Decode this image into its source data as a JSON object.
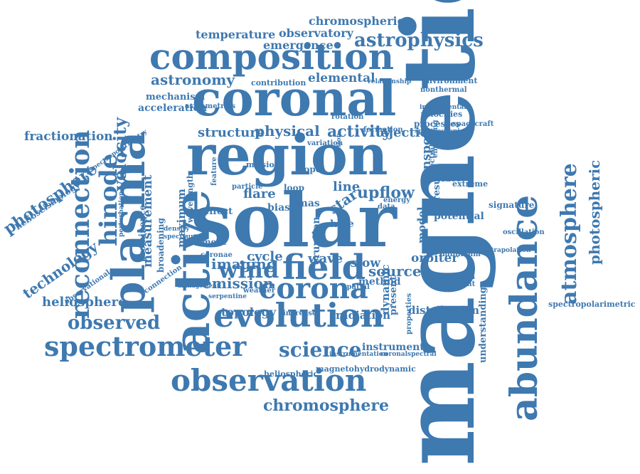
{
  "word_color": "#3e79b0",
  "words": [
    {
      "text": "magnetic",
      "orientation": "vertical-up"
    },
    {
      "text": "solar",
      "orientation": "horizontal"
    },
    {
      "text": "region",
      "orientation": "horizontal"
    },
    {
      "text": "coronal",
      "orientation": "horizontal"
    },
    {
      "text": "active",
      "orientation": "vertical-up"
    },
    {
      "text": "plasma",
      "orientation": "vertical-up"
    },
    {
      "text": "abundance",
      "orientation": "vertical-up"
    },
    {
      "text": "composition",
      "orientation": "horizontal"
    },
    {
      "text": "field",
      "orientation": "horizontal"
    },
    {
      "text": "evolution",
      "orientation": "horizontal"
    },
    {
      "text": "observation",
      "orientation": "horizontal"
    },
    {
      "text": "spectrometer",
      "orientation": "horizontal"
    },
    {
      "text": "reconnection",
      "orientation": "vertical-up"
    },
    {
      "text": "corona",
      "orientation": "horizontal"
    },
    {
      "text": "wind",
      "orientation": "horizontal"
    },
    {
      "text": "hinode",
      "orientation": "vertical-up"
    },
    {
      "text": "atmosphere",
      "orientation": "vertical-up"
    },
    {
      "text": "science",
      "orientation": "horizontal"
    },
    {
      "text": "observed",
      "orientation": "horizontal"
    },
    {
      "text": "astrophysics",
      "orientation": "horizontal"
    },
    {
      "text": "photosphere",
      "orientation": "diagonal-up"
    },
    {
      "text": "photospheric",
      "orientation": "vertical-up"
    },
    {
      "text": "technology",
      "orientation": "diagonal-up"
    },
    {
      "text": "chromosphere",
      "orientation": "horizontal"
    },
    {
      "text": "velocity",
      "orientation": "vertical-up"
    },
    {
      "text": "upflow",
      "orientation": "horizontal"
    },
    {
      "text": "astronomy",
      "orientation": "horizontal"
    },
    {
      "text": "emission",
      "orientation": "horizontal"
    },
    {
      "text": "imaging",
      "orientation": "horizontal"
    },
    {
      "text": "source",
      "orientation": "horizontal"
    },
    {
      "text": "activity",
      "orientation": "horizontal"
    },
    {
      "text": "physical",
      "orientation": "horizontal"
    },
    {
      "text": "structure",
      "orientation": "horizontal"
    },
    {
      "text": "heliosphere",
      "orientation": "horizontal"
    },
    {
      "text": "fractionation",
      "orientation": "horizontal"
    },
    {
      "text": "measurement",
      "orientation": "vertical-up"
    },
    {
      "text": "temperature",
      "orientation": "horizontal"
    },
    {
      "text": "observatory",
      "orientation": "horizontal"
    },
    {
      "text": "emergence",
      "orientation": "horizontal"
    },
    {
      "text": "chromospheric",
      "orientation": "horizontal"
    },
    {
      "text": "elemental",
      "orientation": "horizontal"
    },
    {
      "text": "acceleration",
      "orientation": "horizontal"
    },
    {
      "text": "mechanism",
      "orientation": "horizontal"
    },
    {
      "text": "topology",
      "orientation": "horizontal"
    },
    {
      "text": "radiation",
      "orientation": "horizontal"
    },
    {
      "text": "distribution",
      "orientation": "horizontal"
    },
    {
      "text": "orbiter",
      "orientation": "horizontal"
    },
    {
      "text": "instrument",
      "orientation": "horizontal"
    },
    {
      "text": "flare",
      "orientation": "horizontal"
    },
    {
      "text": "wave",
      "orientation": "horizontal"
    },
    {
      "text": "slow",
      "orientation": "horizontal"
    },
    {
      "text": "cycle",
      "orientation": "horizontal"
    },
    {
      "text": "line",
      "orientation": "horizontal"
    },
    {
      "text": "ejection",
      "orientation": "horizontal"
    },
    {
      "text": "sunspot",
      "orientation": "vertical-up"
    },
    {
      "text": "different",
      "orientation": "horizontal"
    },
    {
      "text": "potential",
      "orientation": "horizontal"
    },
    {
      "text": "maximum",
      "orientation": "vertical-up"
    },
    {
      "text": "star",
      "orientation": "diagonal-up"
    },
    {
      "text": "mas",
      "orientation": "horizontal"
    },
    {
      "text": "hole",
      "orientation": "horizontal"
    },
    {
      "text": "bias",
      "orientation": "horizontal"
    },
    {
      "text": "effect",
      "orientation": "horizontal"
    },
    {
      "text": "dynamic",
      "orientation": "vertical-up"
    },
    {
      "text": "eruption",
      "orientation": "vertical-up"
    },
    {
      "text": "method",
      "orientation": "horizontal"
    },
    {
      "text": "model",
      "orientation": "vertical-up"
    },
    {
      "text": "result",
      "orientation": "vertical-up"
    },
    {
      "text": "present",
      "orientation": "vertical-up"
    },
    {
      "text": "understanding",
      "orientation": "vertical-up"
    },
    {
      "text": "signature",
      "orientation": "horizontal"
    },
    {
      "text": "extreme",
      "orientation": "horizontal"
    },
    {
      "text": "surface",
      "orientation": "horizontal"
    },
    {
      "text": "processes",
      "orientation": "horizontal"
    },
    {
      "text": "velocities",
      "orientation": "horizontal"
    },
    {
      "text": "spacecraft",
      "orientation": "horizontal"
    },
    {
      "text": "environment",
      "orientation": "horizontal"
    },
    {
      "text": "nonthermal",
      "orientation": "horizontal"
    },
    {
      "text": "contribution",
      "orientation": "horizontal"
    },
    {
      "text": "relationship",
      "orientation": "horizontal"
    },
    {
      "text": "heliospheric",
      "orientation": "horizontal"
    },
    {
      "text": "magnetohydrodynamic",
      "orientation": "horizontal"
    },
    {
      "text": "spectropolarimetric",
      "orientation": "horizontal"
    },
    {
      "text": "helioseismology",
      "orientation": "diagonal-up"
    },
    {
      "text": "observational",
      "orientation": "diagonal-up"
    },
    {
      "text": "wavelength",
      "orientation": "vertical-up"
    },
    {
      "text": "oscillation",
      "orientation": "horizontal"
    },
    {
      "text": "mission",
      "orientation": "horizontal"
    },
    {
      "text": "rope",
      "orientation": "horizontal"
    },
    {
      "text": "loop",
      "orientation": "horizontal"
    },
    {
      "text": "particle",
      "orientation": "horizontal"
    },
    {
      "text": "element",
      "orientation": "horizontal"
    },
    {
      "text": "coronae",
      "orientation": "horizontal"
    },
    {
      "text": "data",
      "orientation": "horizontal"
    },
    {
      "text": "energy",
      "orientation": "horizontal"
    },
    {
      "text": "prominence",
      "orientation": "vertical-up"
    },
    {
      "text": "broadening",
      "orientation": "vertical-up"
    },
    {
      "text": "connection",
      "orientation": "diagonal-up"
    },
    {
      "text": "properties",
      "orientation": "vertical-up"
    },
    {
      "text": "increase",
      "orientation": "horizontal"
    },
    {
      "text": "weather",
      "orientation": "horizontal"
    },
    {
      "text": "asymmetries",
      "orientation": "horizontal"
    },
    {
      "text": "spectropolarimetry",
      "orientation": "diagonal-up"
    },
    {
      "text": "ionization",
      "orientation": "horizontal"
    },
    {
      "text": "important",
      "orientation": "horizontal"
    },
    {
      "text": "minimum",
      "orientation": "horizontal"
    },
    {
      "text": "extrapolation",
      "orientation": "horizontal"
    },
    {
      "text": "instrumentation",
      "orientation": "horizontal"
    },
    {
      "text": "coronalspectral",
      "orientation": "horizontal"
    },
    {
      "text": "serpentine",
      "orientation": "horizontal"
    },
    {
      "text": "management",
      "orientation": "horizontal"
    },
    {
      "text": "perturbation",
      "orientation": "vertical-up"
    },
    {
      "text": "spectrum",
      "orientation": "horizontal"
    },
    {
      "text": "formation",
      "orientation": "horizontal"
    },
    {
      "text": "rotation",
      "orientation": "horizontal"
    },
    {
      "text": "correlation",
      "orientation": "vertical-up"
    },
    {
      "text": "spectroscopic",
      "orientation": "horizontal"
    },
    {
      "text": "instrumental",
      "orientation": "horizontal"
    },
    {
      "text": "emerging",
      "orientation": "vertical-up"
    },
    {
      "text": "spectral",
      "orientation": "vertical-up"
    },
    {
      "text": "feature",
      "orientation": "vertical-up"
    },
    {
      "text": "density",
      "orientation": "horizontal"
    },
    {
      "text": "spatial",
      "orientation": "horizontal"
    },
    {
      "text": "variation",
      "orientation": "horizontal"
    }
  ]
}
